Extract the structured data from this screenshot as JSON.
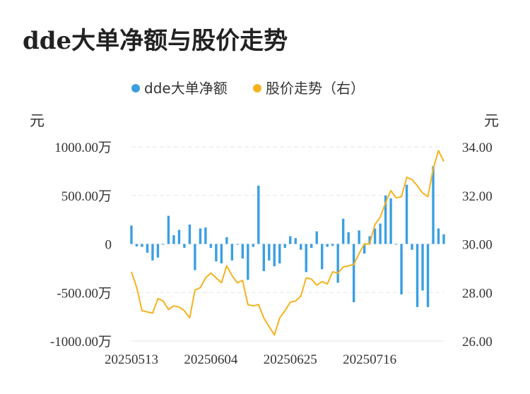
{
  "title": "dde大单净额与股价走势",
  "chart_data": {
    "type": "bar+line",
    "title": "dde大单净额与股价走势",
    "legend": [
      {
        "name": "dde大单净额",
        "color": "#3a9fe2"
      },
      {
        "name": "股价走势（右）",
        "color": "#f5b21f"
      }
    ],
    "y_left_unit": "元",
    "y_right_unit": "元",
    "y_left_ticks": [
      "1000.00万",
      "500.00万",
      "0",
      "-500.00万",
      "-1000.00万"
    ],
    "y_left_range": [
      -1000,
      1000
    ],
    "y_right_ticks": [
      "34.00",
      "32.00",
      "30.00",
      "28.00",
      "26.00"
    ],
    "y_right_range": [
      26,
      34
    ],
    "x_tick_labels": [
      "20250513",
      "20250604",
      "20250625",
      "20250716"
    ],
    "x_tick_index": [
      0,
      15,
      30,
      45
    ],
    "series": [
      {
        "name": "dde大单净额",
        "type": "bar",
        "unit": "万元",
        "values": [
          190,
          -25,
          -30,
          -90,
          -170,
          -140,
          0,
          290,
          90,
          145,
          -40,
          200,
          -270,
          160,
          170,
          -40,
          -180,
          -200,
          70,
          -170,
          0,
          -150,
          -370,
          -30,
          600,
          -280,
          -170,
          -230,
          -200,
          -40,
          80,
          60,
          -60,
          -290,
          -40,
          130,
          -260,
          -30,
          -20,
          -400,
          260,
          120,
          -600,
          140,
          -100,
          80,
          160,
          210,
          500,
          470,
          0,
          -520,
          610,
          -60,
          -650,
          -480,
          -650,
          800,
          160,
          100
        ]
      },
      {
        "name": "股价走势（右）",
        "type": "line",
        "unit": "元",
        "values": [
          28.85,
          28.2,
          27.25,
          27.2,
          27.15,
          27.75,
          27.65,
          27.3,
          27.45,
          27.4,
          27.25,
          26.95,
          28.1,
          28.2,
          28.6,
          28.8,
          28.6,
          28.4,
          29.1,
          28.7,
          28.4,
          28.5,
          27.5,
          27.45,
          27.5,
          26.95,
          26.6,
          26.25,
          26.95,
          27.25,
          27.6,
          27.65,
          27.85,
          28.6,
          28.55,
          28.3,
          28.45,
          28.35,
          28.85,
          28.8,
          29.05,
          29.1,
          29.15,
          29.6,
          30.0,
          30.0,
          30.8,
          31.1,
          31.7,
          32.2,
          31.9,
          31.95,
          32.75,
          32.65,
          32.4,
          32.1,
          31.95,
          33.1,
          33.85,
          33.4
        ]
      }
    ]
  }
}
